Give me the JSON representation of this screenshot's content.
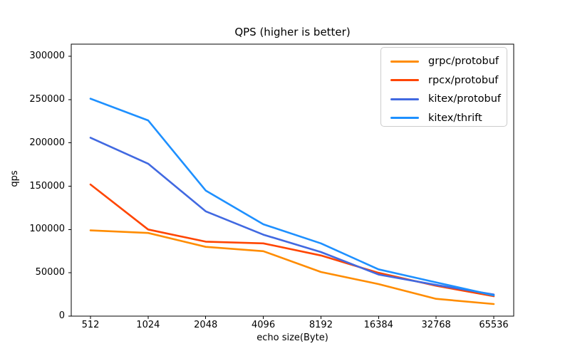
{
  "figure": {
    "title": "QPS (higher is better)",
    "xlabel": "echo size(Byte)",
    "ylabel": "qps"
  },
  "chart_data": {
    "type": "line",
    "title": "QPS (higher is better)",
    "xlabel": "echo size(Byte)",
    "ylabel": "qps",
    "categories": [
      "512",
      "1024",
      "2048",
      "4096",
      "8192",
      "16384",
      "32768",
      "65536"
    ],
    "y_ticks": [
      0,
      50000,
      100000,
      150000,
      200000,
      250000,
      300000
    ],
    "ylim": [
      0,
      314000
    ],
    "grid": false,
    "legend_position": "upper right",
    "series": [
      {
        "name": "grpc/protobuf",
        "color": "#ff8c00",
        "values": [
          99000,
          96000,
          80000,
          75000,
          51000,
          37000,
          20000,
          14000
        ]
      },
      {
        "name": "rpcx/protobuf",
        "color": "#ff4500",
        "values": [
          152000,
          100000,
          86000,
          84000,
          70000,
          50000,
          35000,
          23000
        ]
      },
      {
        "name": "kitex/protobuf",
        "color": "#4169e1",
        "values": [
          206000,
          176000,
          121000,
          94000,
          74000,
          48000,
          36000,
          25000
        ]
      },
      {
        "name": "kitex/thrift",
        "color": "#1e90ff",
        "values": [
          251000,
          226000,
          145000,
          106000,
          84000,
          54000,
          39000,
          24000
        ]
      }
    ]
  }
}
